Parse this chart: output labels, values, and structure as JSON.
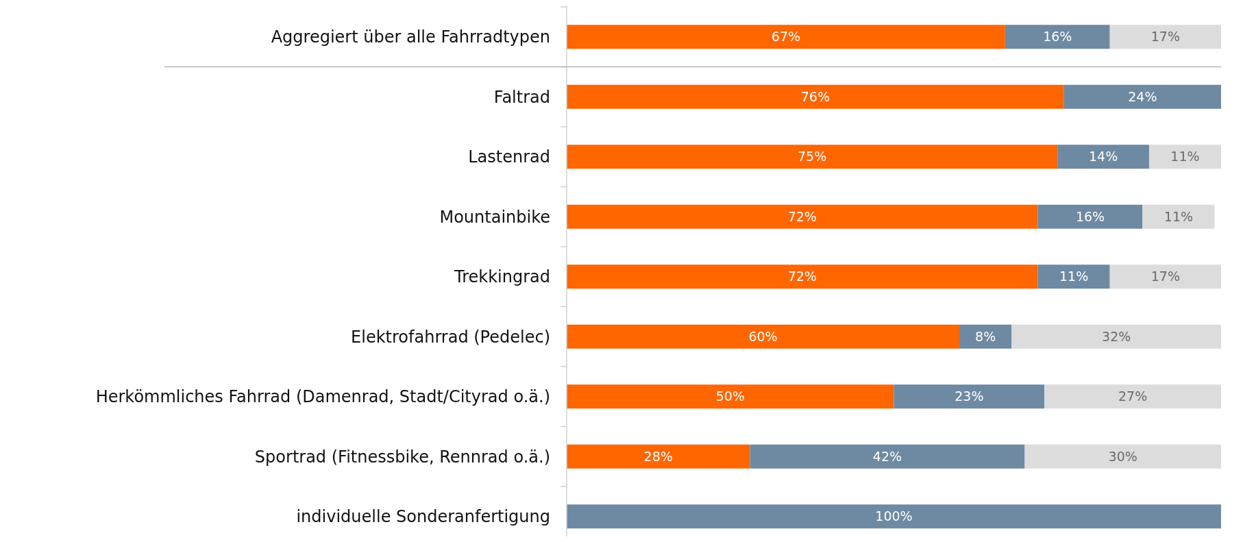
{
  "chart_data": {
    "type": "bar",
    "orientation": "horizontal",
    "stacked": true,
    "categories": [
      "Aggregiert über alle Fahrradtypen",
      "Faltrad",
      "Lastenrad",
      "Mountainbike",
      "Trekkingrad",
      "Elektrofahrrad (Pedelec)",
      "Herkömmliches Fahrrad (Damenrad, Stadt/Cityrad o.ä.)",
      "Sportrad (Fitnessbike, Rennrad o.ä.)",
      "individuelle Sonderanfertigung"
    ],
    "series": [
      {
        "color": "#ff6600",
        "values": [
          67,
          76,
          75,
          72,
          72,
          60,
          50,
          28,
          null
        ],
        "value_labels": [
          "67%",
          "76%",
          "75%",
          "72%",
          "72%",
          "60%",
          "50%",
          "28%",
          null
        ]
      },
      {
        "color": "#6e89a2",
        "values": [
          16,
          24,
          14,
          16,
          11,
          8,
          23,
          42,
          100
        ],
        "value_labels": [
          "16%",
          "24%",
          "14%",
          "16%",
          "11%",
          "8%",
          "23%",
          "42%",
          "100%"
        ]
      },
      {
        "color": "#dcdcdc",
        "values": [
          17,
          null,
          11,
          11,
          17,
          32,
          27,
          30,
          null
        ],
        "value_labels": [
          "17%",
          null,
          "11%",
          "11%",
          "17%",
          "32%",
          "27%",
          "30%",
          null
        ]
      }
    ]
  }
}
